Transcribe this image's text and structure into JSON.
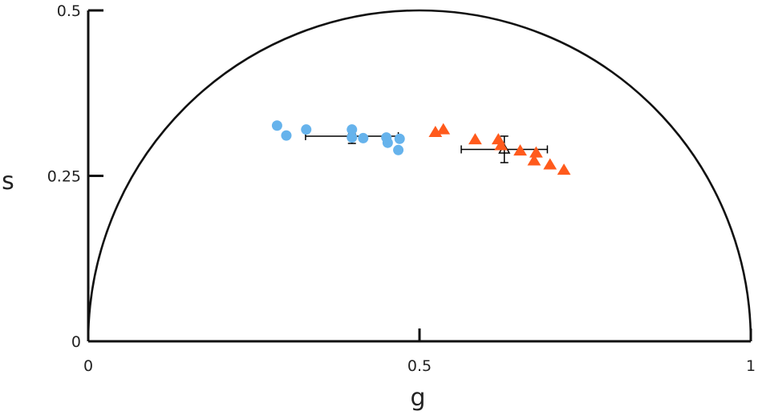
{
  "chart_data": {
    "type": "scatter",
    "title": "",
    "xlabel": "g",
    "ylabel": "s",
    "xlim": [
      0,
      1
    ],
    "ylim": [
      0,
      0.5
    ],
    "xticks": [
      "0",
      "0.5",
      "1"
    ],
    "yticks": [
      "0",
      "0.25",
      "0.5"
    ],
    "grid": false,
    "legend": "none",
    "reference_curve": "universal semicircle",
    "series": [
      {
        "marker": "circle",
        "color": "#66b3ec",
        "points": [
          [
            0.285,
            0.326
          ],
          [
            0.299,
            0.311
          ],
          [
            0.329,
            0.32
          ],
          [
            0.398,
            0.32
          ],
          [
            0.398,
            0.308
          ],
          [
            0.415,
            0.307
          ],
          [
            0.45,
            0.308
          ],
          [
            0.452,
            0.3
          ],
          [
            0.47,
            0.306
          ],
          [
            0.468,
            0.289
          ]
        ]
      },
      {
        "marker": "triangle",
        "color": "#ff5a1c",
        "points": [
          [
            0.524,
            0.316
          ],
          [
            0.536,
            0.32
          ],
          [
            0.584,
            0.305
          ],
          [
            0.619,
            0.305
          ],
          [
            0.623,
            0.296
          ],
          [
            0.652,
            0.288
          ],
          [
            0.676,
            0.285
          ],
          [
            0.673,
            0.273
          ],
          [
            0.697,
            0.267
          ],
          [
            0.718,
            0.259
          ]
        ]
      }
    ],
    "means": [
      {
        "marker": "open-circle",
        "x": 0.398,
        "y": 0.31,
        "xerr": 0.07,
        "yerr": 0.011
      },
      {
        "marker": "open-triangle",
        "x": 0.628,
        "y": 0.29,
        "xerr": 0.065,
        "yerr": 0.02
      }
    ]
  }
}
